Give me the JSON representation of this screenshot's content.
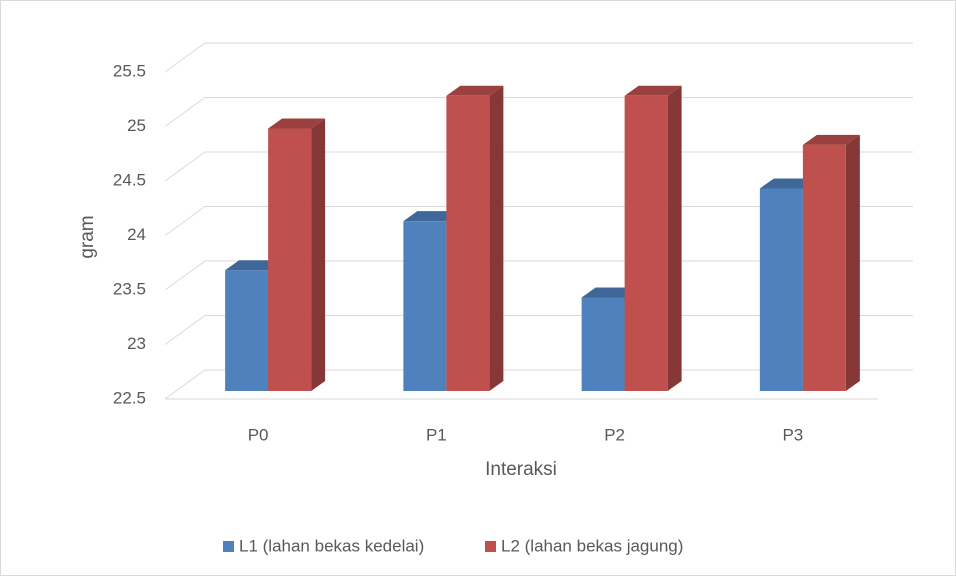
{
  "chart_data": {
    "type": "bar3d",
    "categories": [
      "P0",
      "P1",
      "P2",
      "P3"
    ],
    "series": [
      {
        "name": "L1 (lahan bekas kedelai)",
        "color": "#4f81bd",
        "values": [
          23.7,
          24.15,
          23.45,
          24.45
        ]
      },
      {
        "name": "L2 (lahan bekas jagung)",
        "color": "#c0504d",
        "values": [
          25.0,
          25.3,
          25.3,
          24.85
        ]
      }
    ],
    "ylabel": "gram",
    "xlabel": "Interaksi",
    "ylim": [
      22.5,
      25.5
    ],
    "yticks": [
      22.5,
      23,
      23.5,
      24,
      24.5,
      25,
      25.5
    ],
    "grid": true,
    "legend": "bottom"
  }
}
